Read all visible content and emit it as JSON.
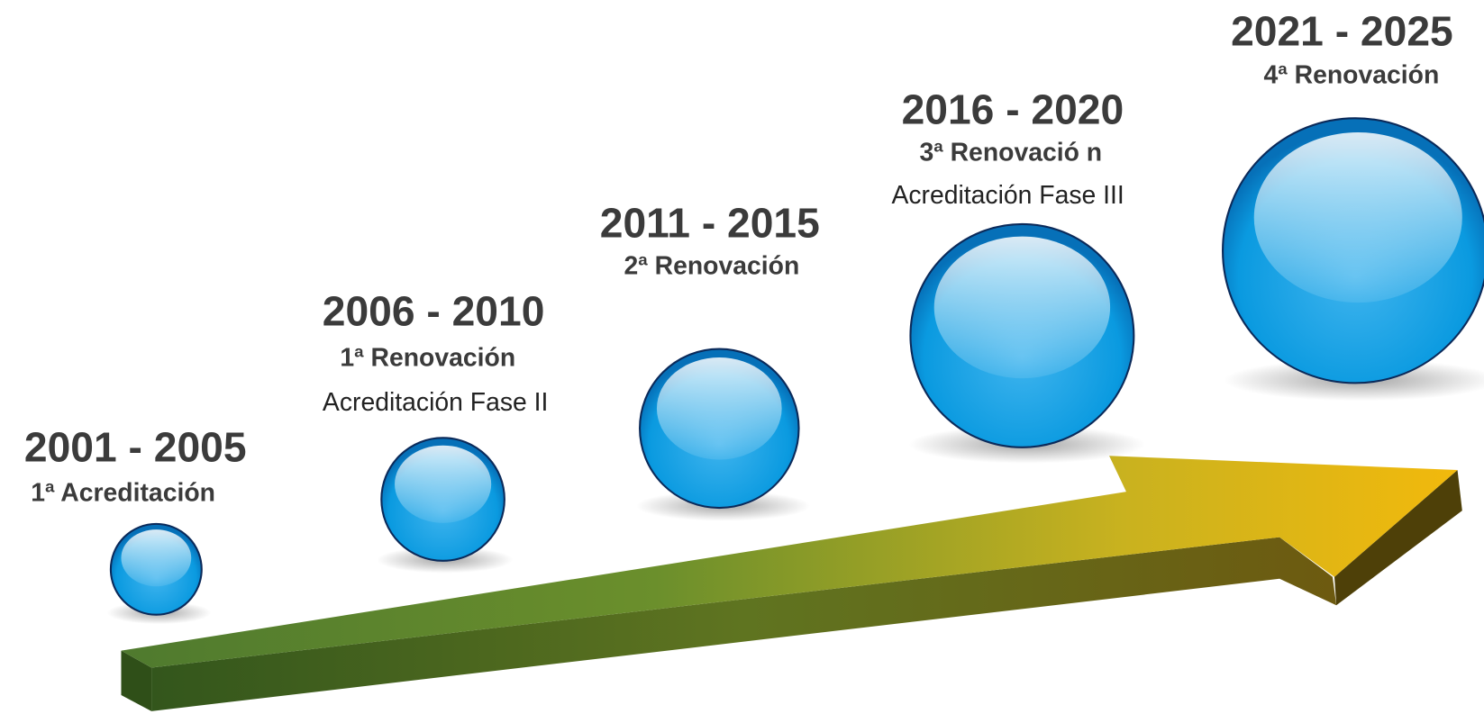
{
  "milestones": [
    {
      "period": "2001 - 2005",
      "title": "1ª Acreditación"
    },
    {
      "period": "2006 - 2010",
      "title": "1ª Renovación",
      "subtitle": "Acreditación Fase II"
    },
    {
      "period": "2011 - 2015",
      "title": "2ª Renovación"
    },
    {
      "period": "2016 - 2020",
      "title": "3ª Renovació n",
      "subtitle": "Acreditación Fase III"
    },
    {
      "period": "2021 - 2025",
      "title": "4ª Renovación"
    }
  ]
}
